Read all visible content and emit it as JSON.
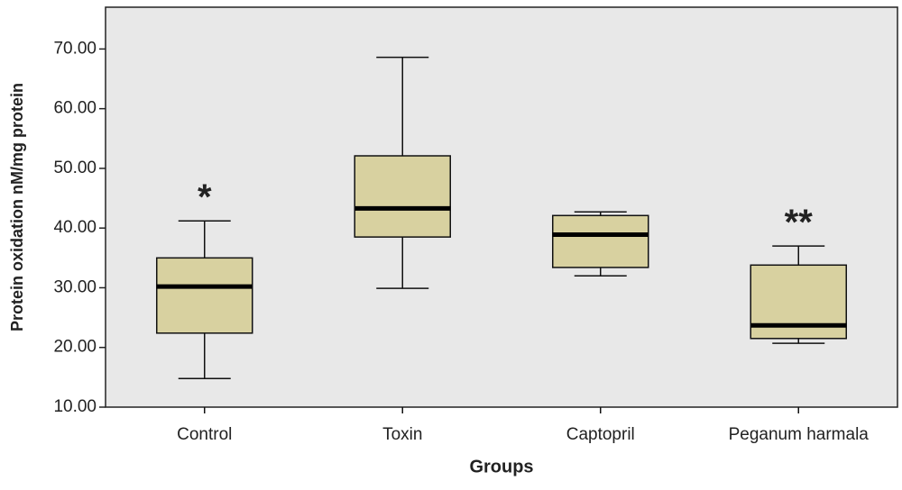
{
  "chart_data": {
    "type": "box",
    "x_label": "Groups",
    "y_label": "Protein oxidation nM/mg protein",
    "categories": [
      "Control",
      "Toxin",
      "Captopril",
      "Peganum harmala"
    ],
    "min": [
      14.8,
      29.9,
      32.0,
      20.7
    ],
    "q1": [
      22.4,
      38.5,
      33.4,
      21.5
    ],
    "median": [
      30.2,
      43.3,
      38.9,
      23.7
    ],
    "q3": [
      35.0,
      52.1,
      42.1,
      33.8
    ],
    "max": [
      41.2,
      68.6,
      42.7,
      37.0
    ],
    "annotations": [
      "*",
      null,
      null,
      "**"
    ],
    "color": "#d8d1a0",
    "ylim": [
      10,
      77
    ],
    "yticks": [
      {
        "value": 10,
        "label": "10.00"
      },
      {
        "value": 20,
        "label": "20.00"
      },
      {
        "value": 30,
        "label": "30.00"
      },
      {
        "value": 40,
        "label": "40.00"
      },
      {
        "value": 50,
        "label": "50.00"
      },
      {
        "value": 60,
        "label": "60.00"
      },
      {
        "value": 70,
        "label": "70.00"
      }
    ]
  }
}
